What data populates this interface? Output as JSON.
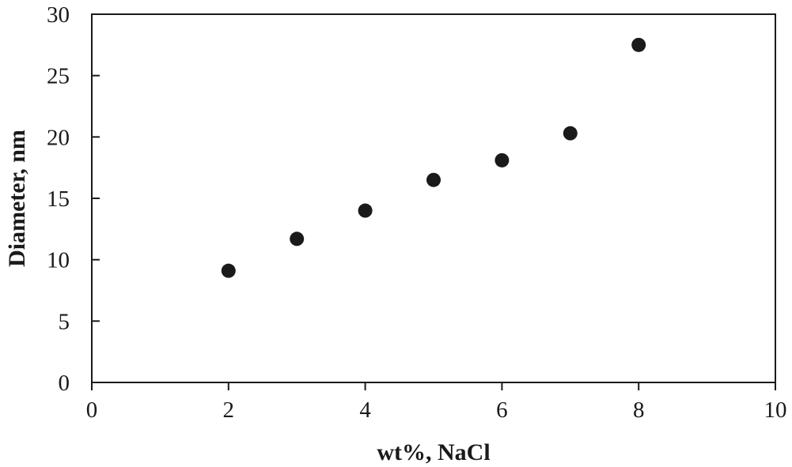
{
  "chart_data": {
    "type": "scatter",
    "title": "",
    "xlabel": "wt%, NaCl",
    "ylabel": "Diameter, nm",
    "xlim": [
      0,
      10
    ],
    "ylim": [
      0,
      30
    ],
    "x_ticks": [
      0,
      2,
      4,
      6,
      8,
      10
    ],
    "y_ticks": [
      0,
      5,
      10,
      15,
      20,
      25,
      30
    ],
    "grid": false,
    "legend": "none",
    "series": [
      {
        "color": "#1a1a1a",
        "marker": "circle",
        "points": [
          {
            "x": 2,
            "y": 9.1
          },
          {
            "x": 3,
            "y": 11.7
          },
          {
            "x": 4,
            "y": 14.0
          },
          {
            "x": 5,
            "y": 16.5
          },
          {
            "x": 6,
            "y": 18.1
          },
          {
            "x": 7,
            "y": 20.3
          },
          {
            "x": 8,
            "y": 27.5
          }
        ]
      }
    ]
  }
}
